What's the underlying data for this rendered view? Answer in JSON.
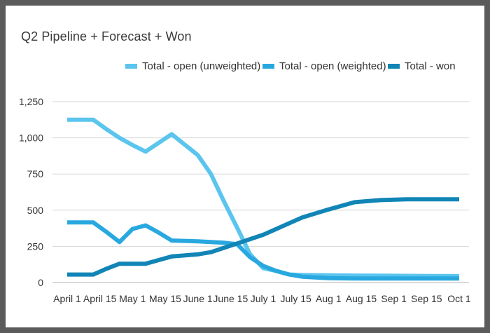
{
  "chart_data": {
    "type": "line",
    "title": "Q2 Pipeline + Forecast + Won",
    "xlabel": "",
    "ylabel": "",
    "categories": [
      "April 1",
      "April 15",
      "May 1",
      "May 15",
      "June 1",
      "June 15",
      "July 1",
      "July 15",
      "Aug 1",
      "Aug 15",
      "Sep 1",
      "Sep 15",
      "Oct 1"
    ],
    "x": [
      0,
      2,
      3,
      4,
      5,
      6,
      7,
      8,
      10,
      11,
      12,
      13,
      14,
      15,
      16,
      17,
      18,
      20,
      22,
      24,
      26,
      28,
      30
    ],
    "yticks": [
      0,
      250,
      500,
      750,
      "1,000",
      "1,250"
    ],
    "ylim": [
      0,
      1250
    ],
    "grid": true,
    "legend_position": "top-right",
    "series": [
      {
        "name": "Total - open (unweighted)",
        "color": "#5bc5ee",
        "values": [
          1125,
          1125,
          1060,
          1000,
          950,
          905,
          965,
          1025,
          880,
          750,
          560,
          380,
          195,
          100,
          80,
          55,
          52,
          50,
          48,
          47,
          46,
          45,
          44
        ]
      },
      {
        "name": "Total - open (weighted)",
        "color": "#29a8e0",
        "values": [
          415,
          415,
          350,
          280,
          370,
          395,
          345,
          290,
          285,
          280,
          275,
          265,
          175,
          115,
          80,
          55,
          40,
          30,
          28,
          28,
          28,
          28,
          28
        ]
      },
      {
        "name": "Total - won",
        "color": "#1185b6",
        "values": [
          55,
          55,
          95,
          130,
          130,
          130,
          155,
          180,
          195,
          210,
          240,
          270,
          300,
          330,
          370,
          410,
          450,
          505,
          555,
          570,
          575,
          575,
          575
        ]
      }
    ]
  }
}
